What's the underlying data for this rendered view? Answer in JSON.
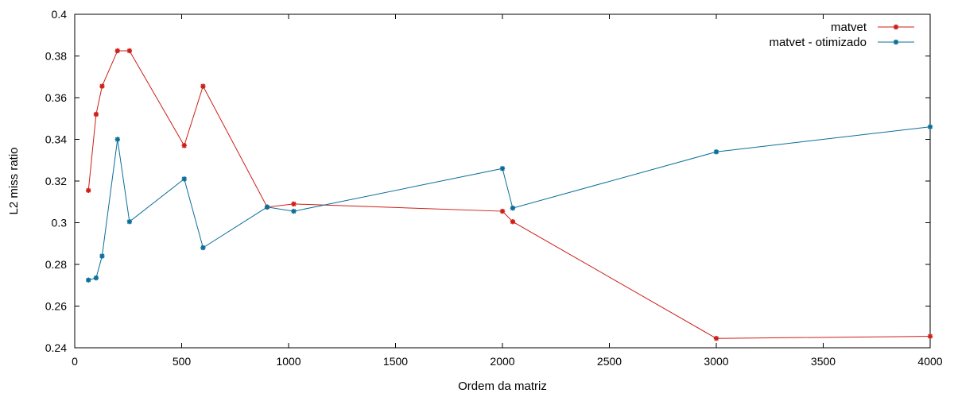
{
  "chart_data": {
    "type": "line",
    "title": "",
    "xlabel": "Ordem da matriz",
    "ylabel": "L2 miss ratio",
    "xlim": [
      0,
      4000
    ],
    "ylim": [
      0.24,
      0.4
    ],
    "xticks": [
      0,
      500,
      1000,
      1500,
      2000,
      2500,
      3000,
      3500,
      4000
    ],
    "xtick_labels": [
      "0",
      "500",
      "1000",
      "1500",
      "2000",
      "2500",
      "3000",
      "3500",
      "4000"
    ],
    "yticks": [
      0.24,
      0.26,
      0.28,
      0.3,
      0.32,
      0.34,
      0.36,
      0.38,
      0.4
    ],
    "ytick_labels": [
      "0.24",
      "0.26",
      "0.28",
      "0.3",
      "0.32",
      "0.34",
      "0.36",
      "0.38",
      "0.4"
    ],
    "grid": false,
    "legend_position": "top-right",
    "series": [
      {
        "name": "matvet",
        "color": "#cc1f17",
        "marker": "star",
        "x": [
          64,
          100,
          128,
          200,
          256,
          512,
          600,
          900,
          1024,
          2000,
          2048,
          3000,
          4000
        ],
        "y": [
          0.3155,
          0.352,
          0.3655,
          0.3825,
          0.3825,
          0.337,
          0.3655,
          0.3075,
          0.309,
          0.3055,
          0.3005,
          0.2445,
          0.2455
        ]
      },
      {
        "name": "matvet - otimizado",
        "color": "#0b6e99",
        "marker": "star",
        "x": [
          64,
          100,
          128,
          200,
          256,
          512,
          600,
          900,
          1024,
          2000,
          2048,
          3000,
          4000
        ],
        "y": [
          0.2725,
          0.2735,
          0.284,
          0.34,
          0.3005,
          0.321,
          0.288,
          0.3075,
          0.3055,
          0.326,
          0.307,
          0.334,
          0.346
        ]
      }
    ]
  }
}
